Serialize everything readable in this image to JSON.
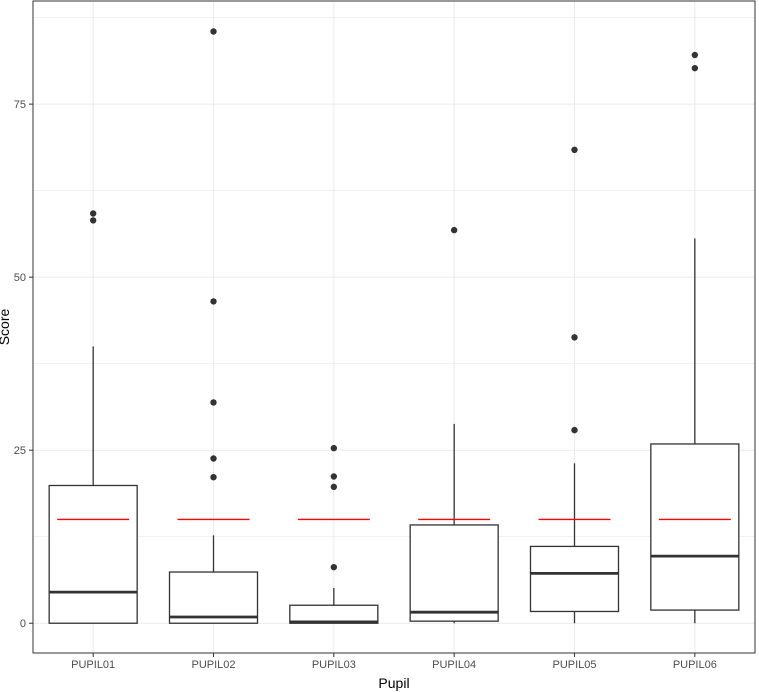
{
  "chart_data": {
    "type": "boxplot",
    "title": "",
    "xlabel": "Pupil",
    "ylabel": "Score",
    "ylim": [
      -4.3,
      89.9
    ],
    "yticks": [
      0,
      25,
      50,
      75
    ],
    "grid": true,
    "reference_line": {
      "value": 15,
      "color": "#ff0000"
    },
    "colors": {
      "box": "#333333",
      "outlier": "#333333",
      "grid": "#ebebeb"
    },
    "categories": [
      "PUPIL01",
      "PUPIL02",
      "PUPIL03",
      "PUPIL04",
      "PUPIL05",
      "PUPIL06"
    ],
    "boxes": [
      {
        "min": 0,
        "q1": 0,
        "median": 4.5,
        "q3": 19.9,
        "max": 40.0,
        "outliers": [
          59.2,
          58.2
        ]
      },
      {
        "min": 0,
        "q1": 0,
        "median": 0.9,
        "q3": 7.4,
        "max": 12.7,
        "outliers": [
          85.5,
          46.5,
          31.9,
          23.8,
          21.1
        ]
      },
      {
        "min": 0,
        "q1": 0,
        "median": 0.2,
        "q3": 2.6,
        "max": 5.1,
        "outliers": [
          8.1,
          19.7,
          21.2,
          25.3
        ]
      },
      {
        "min": 0,
        "q1": 0.3,
        "median": 1.6,
        "q3": 14.2,
        "max": 28.8,
        "outliers": [
          56.8
        ]
      },
      {
        "min": 0,
        "q1": 1.7,
        "median": 7.2,
        "q3": 11.1,
        "max": 23.1,
        "outliers": [
          68.4,
          41.3,
          27.9
        ]
      },
      {
        "min": 0,
        "q1": 1.9,
        "median": 9.7,
        "q3": 25.9,
        "max": 55.6,
        "outliers": [
          82.1,
          80.2
        ]
      }
    ]
  }
}
